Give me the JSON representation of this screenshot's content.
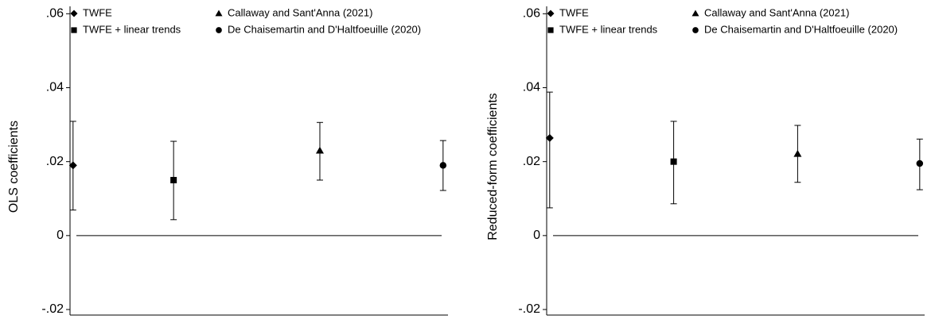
{
  "chart_data": [
    {
      "type": "errorbar",
      "y_label": "OLS coefficients",
      "ylim": [
        -0.0215,
        0.062
      ],
      "yticks": [
        {
          "value": -0.02,
          "label": "-.02"
        },
        {
          "value": 0,
          "label": "0"
        },
        {
          "value": 0.02,
          "label": ".02"
        },
        {
          "value": 0.04,
          "label": ".04"
        },
        {
          "value": 0.06,
          "label": ".06"
        }
      ],
      "reference_line": 0,
      "series": [
        {
          "name": "TWFE",
          "marker": "diamond",
          "color": "#000000",
          "values": [
            0.019
          ],
          "lower": [
            0.0069
          ],
          "upper": [
            0.0309
          ]
        },
        {
          "name": "TWFE + linear trends",
          "marker": "square",
          "color": "#000000",
          "values": [
            0.015
          ],
          "lower": [
            0.0043
          ],
          "upper": [
            0.0255
          ]
        },
        {
          "name": "Callaway and Sant'Anna (2021)",
          "marker": "triangle",
          "color": "#000000",
          "values": [
            0.023
          ],
          "lower": [
            0.015
          ],
          "upper": [
            0.0306
          ]
        },
        {
          "name": "De Chaisemartin and D'Haltfoeuille (2020)",
          "marker": "circle",
          "color": "#000000",
          "values": [
            0.019
          ],
          "lower": [
            0.0122
          ],
          "upper": [
            0.0257
          ]
        }
      ]
    },
    {
      "type": "errorbar",
      "y_label": "Reduced-form coefficients",
      "ylim": [
        -0.0215,
        0.062
      ],
      "yticks": [
        {
          "value": -0.02,
          "label": "-.02"
        },
        {
          "value": 0,
          "label": "0"
        },
        {
          "value": 0.02,
          "label": ".02"
        },
        {
          "value": 0.04,
          "label": ".04"
        },
        {
          "value": 0.06,
          "label": ".06"
        }
      ],
      "reference_line": 0,
      "series": [
        {
          "name": "TWFE",
          "marker": "diamond",
          "color": "#000000",
          "values": [
            0.0264
          ],
          "lower": [
            0.0075
          ],
          "upper": [
            0.0388
          ]
        },
        {
          "name": "TWFE + linear trends",
          "marker": "square",
          "color": "#000000",
          "values": [
            0.02
          ],
          "lower": [
            0.0086
          ],
          "upper": [
            0.0309
          ]
        },
        {
          "name": "Callaway and Sant'Anna (2021)",
          "marker": "triangle",
          "color": "#000000",
          "values": [
            0.0221
          ],
          "lower": [
            0.0144
          ],
          "upper": [
            0.0298
          ]
        },
        {
          "name": "De Chaisemartin and D'Haltfoeuille (2020)",
          "marker": "circle",
          "color": "#000000",
          "values": [
            0.0195
          ],
          "lower": [
            0.0124
          ],
          "upper": [
            0.0261
          ]
        }
      ]
    }
  ]
}
